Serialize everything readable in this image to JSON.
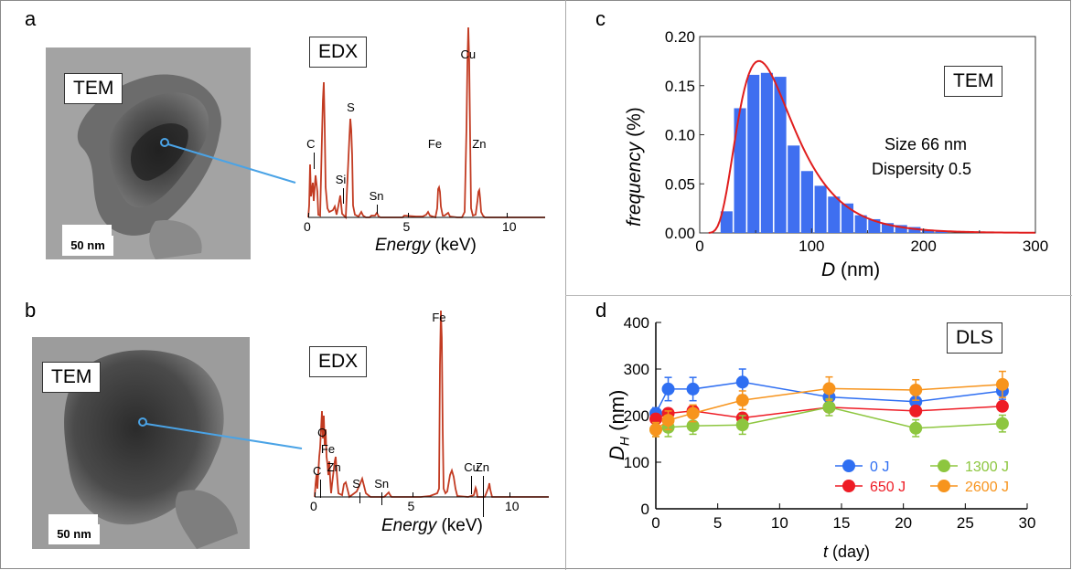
{
  "panels": {
    "a": "a",
    "b": "b",
    "c": "c",
    "d": "d"
  },
  "tem_label": "TEM",
  "edx_label": "EDX",
  "scale_bar": "50 nm",
  "edx_xlabel_italic": "Energy",
  "edx_xlabel_unit": "(keV)",
  "edx_ticks": [
    "0",
    "5",
    "10"
  ],
  "edx_a_peaks": [
    {
      "label": "C",
      "energy": 0.28
    },
    {
      "label": "Si",
      "energy": 1.74
    },
    {
      "label": "S",
      "energy": 2.31
    },
    {
      "label": "Sn",
      "energy": 3.44
    },
    {
      "label": "Fe",
      "energy": 6.4
    },
    {
      "label": "Cu",
      "energy": 8.04
    },
    {
      "label": "Zn",
      "energy": 8.63
    }
  ],
  "edx_b_peaks": [
    {
      "label": "C",
      "energy": 0.28
    },
    {
      "label": "O",
      "energy": 0.52
    },
    {
      "label": "Fe",
      "energy": 0.7
    },
    {
      "label": "Zn",
      "energy": 1.01
    },
    {
      "label": "S",
      "energy": 2.31
    },
    {
      "label": "Sn",
      "energy": 3.44
    },
    {
      "label": "Fe",
      "energy": 6.4
    },
    {
      "label": "Cu",
      "energy": 8.04
    },
    {
      "label": "Zn",
      "energy": 8.63
    }
  ],
  "chart_data": [
    {
      "type": "bar",
      "title": "TEM",
      "xlabel_var": "D",
      "xlabel_unit": "(nm)",
      "ylabel_var": "frequency",
      "ylabel_unit": "(%)",
      "xlim": [
        0,
        300
      ],
      "ylim": [
        0,
        0.2
      ],
      "x_ticks": [
        "0",
        "100",
        "200",
        "300"
      ],
      "y_ticks": [
        "0.00",
        "0.05",
        "0.10",
        "0.15",
        "0.20"
      ],
      "bin_width": 12,
      "bin_starts": [
        18,
        30,
        42,
        54,
        66,
        78,
        90,
        102,
        114,
        126,
        138,
        150,
        162,
        174,
        186,
        198,
        210
      ],
      "values": [
        0.022,
        0.127,
        0.161,
        0.163,
        0.159,
        0.089,
        0.063,
        0.048,
        0.037,
        0.03,
        0.018,
        0.014,
        0.01,
        0.008,
        0.006,
        0.003,
        0.002
      ],
      "annotation_size": "Size 66 nm",
      "annotation_dispersity": "Dispersity 0.5",
      "fit_color": "#e01e1e",
      "bar_color": "#3f6ff0"
    },
    {
      "type": "line",
      "title": "DLS",
      "xlabel_var": "t",
      "xlabel_unit": "(day)",
      "ylabel_var": "D",
      "ylabel_sub": "H",
      "ylabel_unit": "(nm)",
      "xlim": [
        0,
        30
      ],
      "ylim": [
        0,
        400
      ],
      "x_ticks": [
        "0",
        "5",
        "10",
        "15",
        "20",
        "25",
        "30"
      ],
      "y_ticks": [
        "0",
        "100",
        "200",
        "300",
        "400"
      ],
      "x": [
        0,
        1,
        3,
        7,
        14,
        21,
        28
      ],
      "series": [
        {
          "name": "0 J",
          "color": "#2f6ff2",
          "values": [
            205,
            257,
            257,
            272,
            240,
            230,
            253
          ],
          "err": [
            12,
            25,
            25,
            28,
            15,
            15,
            18
          ]
        },
        {
          "name": "650 J",
          "color": "#ee1c25",
          "values": [
            193,
            205,
            210,
            195,
            218,
            210,
            220
          ],
          "err": [
            10,
            10,
            10,
            10,
            10,
            10,
            10
          ]
        },
        {
          "name": "1300 J",
          "color": "#8dc63f",
          "values": [
            170,
            175,
            178,
            180,
            218,
            173,
            183
          ],
          "err": [
            15,
            20,
            18,
            20,
            18,
            18,
            18
          ]
        },
        {
          "name": "2600 J",
          "color": "#f7941d",
          "values": [
            170,
            190,
            205,
            233,
            258,
            255,
            267
          ],
          "err": [
            15,
            20,
            18,
            20,
            25,
            22,
            28
          ]
        }
      ]
    }
  ]
}
